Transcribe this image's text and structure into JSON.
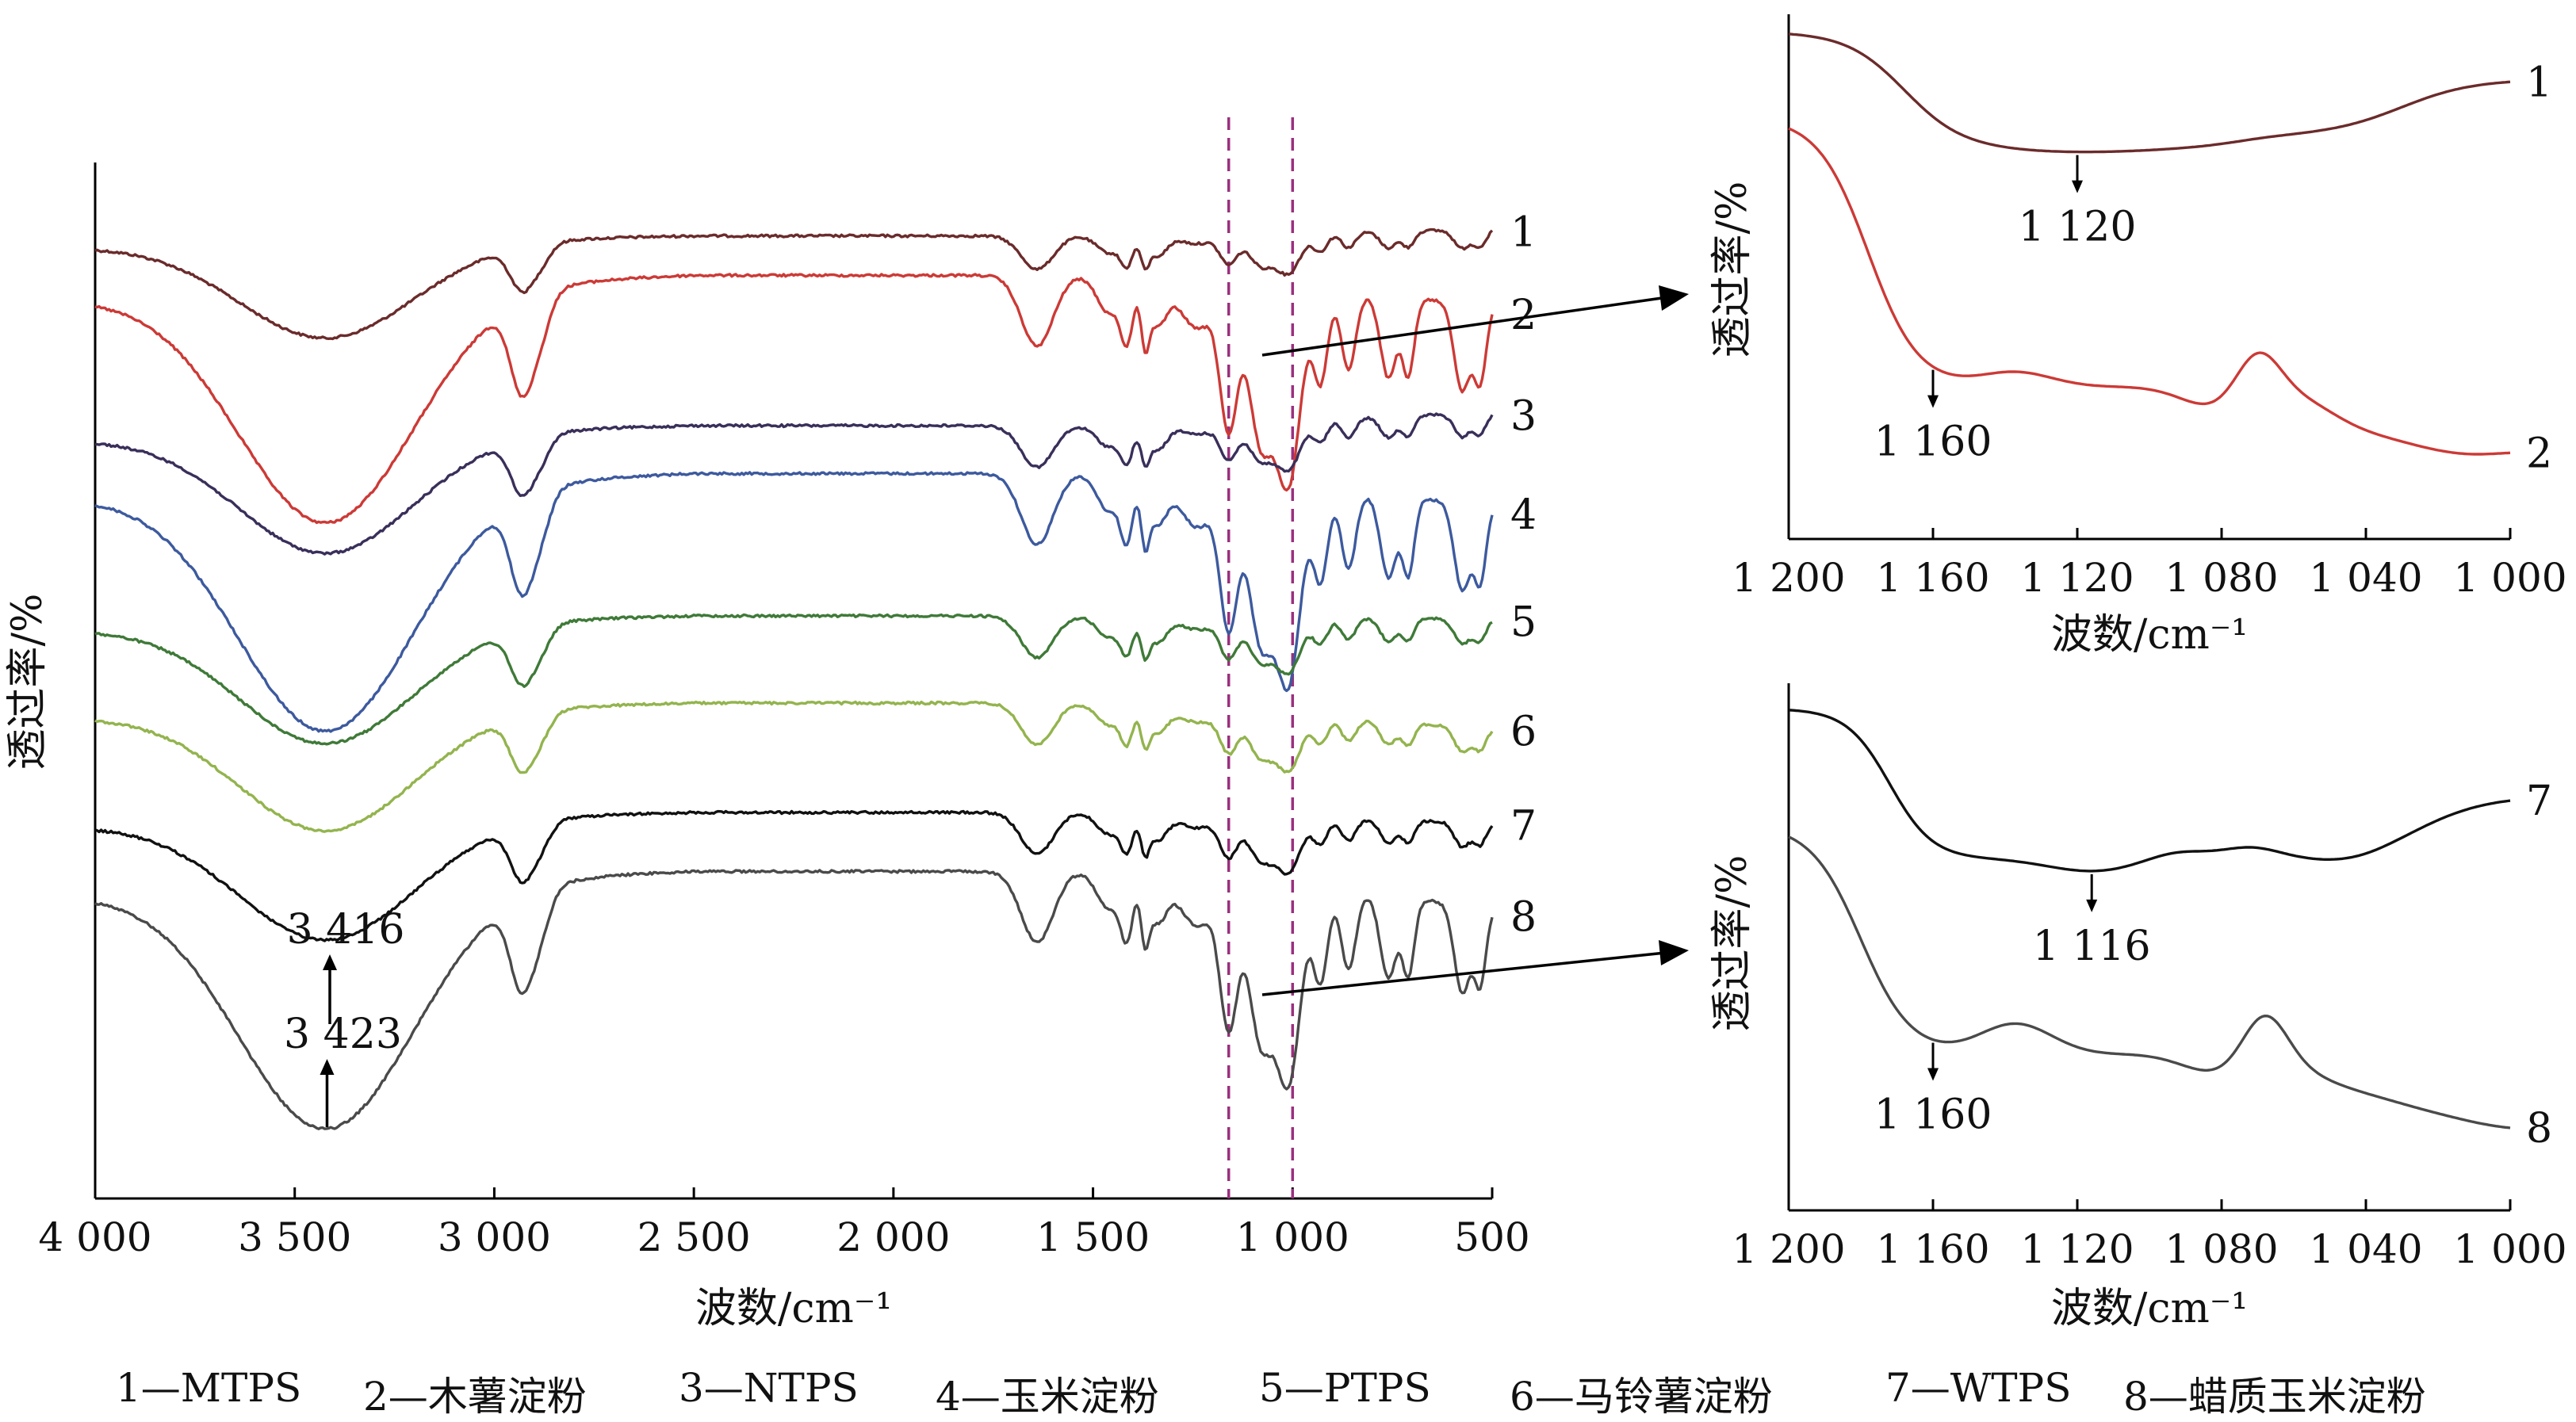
{
  "chart_data": [
    {
      "id": "main",
      "type": "line",
      "xlabel": "波数/cm⁻¹",
      "ylabel": "透过率/%",
      "xlim": [
        4000,
        500
      ],
      "x_reversed": true,
      "xticks": [
        4000,
        3500,
        3000,
        2500,
        2000,
        1500,
        1000,
        500
      ],
      "xtick_labels": [
        "4 000",
        "3 500",
        "3 000",
        "2 500",
        "2 000",
        "1 500",
        "1 000",
        "500"
      ],
      "y_ticks_shown": false,
      "guide_lines_x": [
        1160,
        1000
      ],
      "series": [
        {
          "name": "1",
          "color": "#6b2b2b",
          "label": "1"
        },
        {
          "name": "2",
          "color": "#cc3a36",
          "label": "2"
        },
        {
          "name": "3",
          "color": "#3a2f5a",
          "label": "3"
        },
        {
          "name": "4",
          "color": "#3d5a9e",
          "label": "4"
        },
        {
          "name": "5",
          "color": "#3f7a38",
          "label": "5"
        },
        {
          "name": "6",
          "color": "#93b44e",
          "label": "6"
        },
        {
          "name": "7",
          "color": "#111111",
          "label": "7"
        },
        {
          "name": "8",
          "color": "#4a4a4a",
          "label": "8"
        }
      ],
      "annotations": [
        {
          "text": "3 416",
          "x": 3416,
          "series": "7"
        },
        {
          "text": "3 423",
          "x": 3423,
          "series": "8"
        }
      ]
    },
    {
      "id": "inset-top",
      "type": "line",
      "xlabel": "波数/cm⁻¹",
      "ylabel": "透过率/%",
      "xlim": [
        1200,
        1000
      ],
      "x_reversed": true,
      "xticks": [
        1200,
        1160,
        1120,
        1080,
        1040,
        1000
      ],
      "xtick_labels": [
        "1 200",
        "1 160",
        "1 120",
        "1 080",
        "1 040",
        "1 000"
      ],
      "series": [
        {
          "name": "1",
          "color": "#6b2b2b",
          "label": "1"
        },
        {
          "name": "2",
          "color": "#cc3a36",
          "label": "2"
        }
      ],
      "annotations": [
        {
          "text": "1 120",
          "x": 1120,
          "series": "1"
        },
        {
          "text": "1 160",
          "x": 1160,
          "series": "2"
        }
      ]
    },
    {
      "id": "inset-bottom",
      "type": "line",
      "xlabel": "波数/cm⁻¹",
      "ylabel": "透过率/%",
      "xlim": [
        1200,
        1000
      ],
      "x_reversed": true,
      "xticks": [
        1200,
        1160,
        1120,
        1080,
        1040,
        1000
      ],
      "xtick_labels": [
        "1 200",
        "1 160",
        "1 120",
        "1 080",
        "1 040",
        "1 000"
      ],
      "series": [
        {
          "name": "7",
          "color": "#111111",
          "label": "7"
        },
        {
          "name": "8",
          "color": "#4a4a4a",
          "label": "8"
        }
      ],
      "annotations": [
        {
          "text": "1 116",
          "x": 1116,
          "series": "7"
        },
        {
          "text": "1 160",
          "x": 1160,
          "series": "8"
        }
      ]
    }
  ],
  "legend": [
    "1—MTPS",
    "2—木薯淀粉",
    "3—NTPS",
    "4—玉米淀粉",
    "5—PTPS",
    "6—马铃薯淀粉",
    "7—WTPS",
    "8—蜡质玉米淀粉"
  ],
  "colors": {
    "guide": "#9b2f7e",
    "axis": "#000000"
  }
}
